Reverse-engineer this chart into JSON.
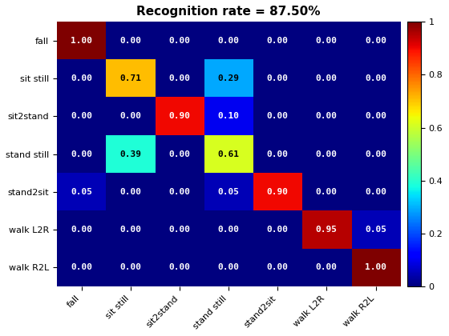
{
  "title": "Recognition rate = 87.50%",
  "labels": [
    "fall",
    "sit still",
    "sit2stand",
    "stand still",
    "stand2sit",
    "walk L2R",
    "walk R2L"
  ],
  "matrix": [
    [
      1.0,
      0.0,
      0.0,
      0.0,
      0.0,
      0.0,
      0.0
    ],
    [
      0.0,
      0.71,
      0.0,
      0.29,
      0.0,
      0.0,
      0.0
    ],
    [
      0.0,
      0.0,
      0.9,
      0.1,
      0.0,
      0.0,
      0.0
    ],
    [
      0.0,
      0.39,
      0.0,
      0.61,
      0.0,
      0.0,
      0.0
    ],
    [
      0.05,
      0.0,
      0.0,
      0.05,
      0.9,
      0.0,
      0.0
    ],
    [
      0.0,
      0.0,
      0.0,
      0.0,
      0.0,
      0.95,
      0.05
    ],
    [
      0.0,
      0.0,
      0.0,
      0.0,
      0.0,
      0.0,
      1.0
    ]
  ],
  "vmin": 0,
  "vmax": 1,
  "colormap": "jet",
  "title_fontsize": 11,
  "tick_fontsize": 8,
  "cell_fontsize": 8,
  "figsize": [
    5.6,
    4.2
  ],
  "dpi": 100
}
